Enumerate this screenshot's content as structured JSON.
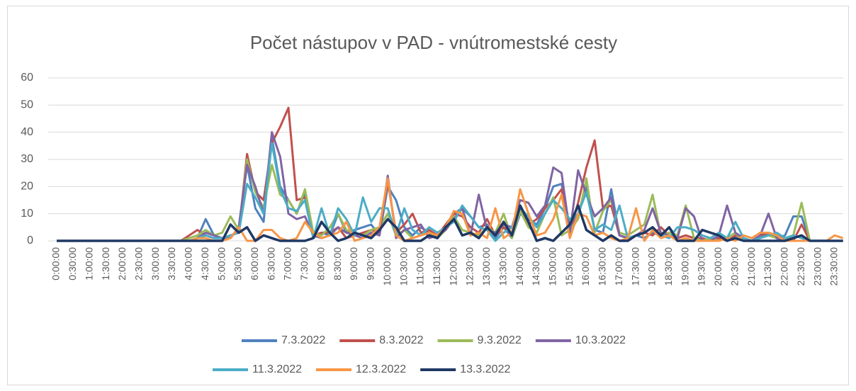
{
  "chart_data": {
    "type": "line",
    "title": "Počet nástupov v PAD - vnútromestské cesty",
    "categories": [
      "0:00:00",
      null,
      "0:30:00",
      null,
      "1:00:00",
      null,
      "1:30:00",
      null,
      "2:00:00",
      null,
      "2:30:00",
      null,
      "3:00:00",
      null,
      "3:30:00",
      null,
      "4:00:00",
      null,
      "4:30:00",
      null,
      "5:00:00",
      null,
      "5:30:00",
      null,
      "6:00:00",
      null,
      "6:30:00",
      null,
      "7:00:00",
      null,
      "7:30:00",
      null,
      "8:00:00",
      null,
      "8:30:00",
      null,
      "9:00:00",
      null,
      "9:30:00",
      null,
      "10:00:00",
      null,
      "10:30:00",
      null,
      "11:00:00",
      null,
      "11:30:00",
      null,
      "12:00:00",
      null,
      "12:30:00",
      null,
      "13:00:00",
      null,
      "13:30:00",
      null,
      "14:00:00",
      null,
      "14:30:00",
      null,
      "15:00:00",
      null,
      "15:30:00",
      null,
      "16:00:00",
      null,
      "16:30:00",
      null,
      "17:00:00",
      null,
      "17:30:00",
      null,
      "18:00:00",
      null,
      "18:30:00",
      null,
      "19:00:00",
      null,
      "19:30:00",
      null,
      "20:00:00",
      null,
      "20:30:00",
      null,
      "21:00:00",
      null,
      "21:30:00",
      null,
      "22:00:00",
      null,
      "22:30:00",
      null,
      "23:00:00",
      null,
      "23:30:00",
      null
    ],
    "series": [
      {
        "name": "7.3.2022",
        "color": "#4f81bd",
        "values": [
          0,
          0,
          0,
          0,
          0,
          0,
          0,
          0,
          0,
          0,
          0,
          0,
          0,
          0,
          0,
          0,
          0,
          1,
          8,
          2,
          1,
          1,
          5,
          28,
          12,
          7,
          38,
          20,
          15,
          10,
          18,
          1,
          3,
          2,
          10,
          3,
          4,
          5,
          6,
          2,
          20,
          15,
          5,
          2,
          5,
          3,
          2,
          4,
          10,
          12,
          9,
          5,
          6,
          1,
          5,
          1,
          10,
          8,
          6,
          12,
          20,
          21,
          5,
          10,
          20,
          4,
          3,
          19,
          2,
          1,
          2,
          1,
          3,
          2,
          5,
          1,
          2,
          1,
          0,
          0,
          1,
          0,
          1,
          0,
          0,
          1,
          3,
          1,
          2,
          9,
          9,
          0,
          0,
          0,
          0,
          0
        ]
      },
      {
        "name": "8.3.2022",
        "color": "#c0504d",
        "values": [
          0,
          0,
          0,
          0,
          0,
          0,
          0,
          0,
          0,
          0,
          0,
          0,
          0,
          0,
          0,
          0,
          2,
          4,
          2,
          1,
          1,
          2,
          3,
          32,
          18,
          15,
          36,
          42,
          49,
          15,
          16,
          2,
          3,
          3,
          5,
          1,
          2,
          3,
          4,
          3,
          22,
          3,
          6,
          10,
          3,
          4,
          2,
          6,
          10,
          9,
          5,
          3,
          8,
          2,
          5,
          3,
          12,
          6,
          8,
          12,
          15,
          19,
          4,
          14,
          27,
          37,
          12,
          13,
          2,
          1,
          2,
          3,
          2,
          5,
          2,
          1,
          2,
          1,
          1,
          0,
          1,
          0,
          2,
          1,
          0,
          2,
          3,
          2,
          1,
          0,
          6,
          0,
          0,
          0,
          0,
          0
        ]
      },
      {
        "name": "9.3.2022",
        "color": "#9bbb59",
        "values": [
          0,
          0,
          0,
          0,
          0,
          0,
          0,
          0,
          0,
          0,
          0,
          0,
          0,
          0,
          0,
          0,
          1,
          2,
          4,
          2,
          3,
          9,
          4,
          30,
          18,
          12,
          28,
          17,
          15,
          10,
          19,
          3,
          2,
          5,
          10,
          4,
          3,
          2,
          4,
          5,
          10,
          2,
          4,
          1,
          2,
          3,
          1,
          4,
          9,
          4,
          3,
          2,
          5,
          3,
          10,
          1,
          11,
          5,
          3,
          10,
          16,
          2,
          4,
          8,
          23,
          3,
          11,
          15,
          3,
          2,
          4,
          6,
          17,
          2,
          3,
          2,
          13,
          1,
          0,
          1,
          0,
          1,
          3,
          0,
          0,
          1,
          2,
          1,
          0,
          2,
          14,
          0,
          0,
          0,
          0,
          0
        ]
      },
      {
        "name": "10.3.2022",
        "color": "#8064a2",
        "values": [
          0,
          0,
          0,
          0,
          0,
          0,
          0,
          0,
          0,
          0,
          0,
          0,
          0,
          0,
          0,
          0,
          0,
          1,
          3,
          2,
          1,
          1,
          5,
          28,
          20,
          10,
          40,
          31,
          10,
          8,
          9,
          2,
          1,
          2,
          5,
          3,
          2,
          1,
          3,
          2,
          24,
          1,
          4,
          5,
          6,
          1,
          2,
          4,
          8,
          12,
          2,
          17,
          4,
          3,
          6,
          5,
          15,
          14,
          9,
          13,
          27,
          25,
          3,
          26,
          17,
          9,
          12,
          16,
          2,
          1,
          2,
          4,
          12,
          3,
          2,
          1,
          12,
          9,
          0,
          0,
          2,
          13,
          3,
          1,
          0,
          2,
          10,
          1,
          0,
          1,
          2,
          0,
          0,
          0,
          0,
          0
        ]
      },
      {
        "name": "11.3.2022",
        "color": "#4bacc6",
        "values": [
          0,
          0,
          0,
          0,
          0,
          0,
          0,
          0,
          0,
          0,
          0,
          0,
          0,
          0,
          0,
          0,
          0,
          1,
          2,
          1,
          1,
          2,
          3,
          21,
          16,
          10,
          36,
          19,
          12,
          11,
          15,
          1,
          12,
          2,
          12,
          8,
          2,
          16,
          7,
          12,
          12,
          2,
          12,
          4,
          2,
          5,
          3,
          5,
          7,
          13,
          9,
          5,
          4,
          0,
          3,
          5,
          12,
          9,
          5,
          10,
          15,
          12,
          8,
          10,
          18,
          4,
          6,
          4,
          13,
          1,
          2,
          3,
          5,
          2,
          1,
          5,
          5,
          4,
          2,
          1,
          3,
          1,
          7,
          1,
          0,
          1,
          2,
          3,
          1,
          2,
          1,
          0,
          0,
          0,
          0,
          0
        ]
      },
      {
        "name": "12.3.2022",
        "color": "#f79646",
        "values": [
          0,
          0,
          0,
          0,
          0,
          0,
          0,
          0,
          0,
          0,
          0,
          0,
          0,
          0,
          0,
          0,
          0,
          1,
          1,
          0,
          0,
          1,
          5,
          0,
          0,
          4,
          4,
          1,
          0,
          1,
          7,
          3,
          1,
          2,
          3,
          7,
          0,
          1,
          2,
          5,
          23,
          2,
          0,
          1,
          2,
          3,
          2,
          5,
          11,
          10,
          2,
          3,
          1,
          12,
          1,
          3,
          19,
          10,
          2,
          3,
          8,
          17,
          1,
          10,
          9,
          2,
          3,
          1,
          0,
          1,
          12,
          0,
          4,
          1,
          2,
          0,
          1,
          0,
          0,
          0,
          0,
          1,
          0,
          2,
          1,
          3,
          3,
          2,
          0,
          0,
          0,
          0,
          0,
          0,
          2,
          1
        ]
      },
      {
        "name": "13.3.2022",
        "color": "#1f3864",
        "values": [
          0,
          0,
          0,
          0,
          0,
          0,
          0,
          0,
          0,
          0,
          0,
          0,
          0,
          0,
          0,
          0,
          0,
          0,
          0,
          0,
          0,
          6,
          3,
          5,
          0,
          2,
          1,
          0,
          0,
          0,
          0,
          1,
          7,
          3,
          0,
          1,
          3,
          2,
          1,
          4,
          8,
          5,
          0,
          0,
          0,
          2,
          1,
          5,
          8,
          2,
          3,
          1,
          5,
          2,
          7,
          2,
          13,
          7,
          0,
          1,
          0,
          3,
          6,
          13,
          4,
          2,
          0,
          2,
          0,
          0,
          2,
          3,
          5,
          2,
          5,
          0,
          0,
          0,
          4,
          3,
          2,
          0,
          1,
          0,
          0,
          0,
          0,
          0,
          0,
          1,
          2,
          0,
          0,
          0,
          0,
          0
        ]
      }
    ],
    "ylim": [
      0,
      60
    ],
    "yticks": [
      0,
      10,
      20,
      30,
      40,
      50,
      60
    ],
    "grid": true,
    "legend": "bottom"
  }
}
